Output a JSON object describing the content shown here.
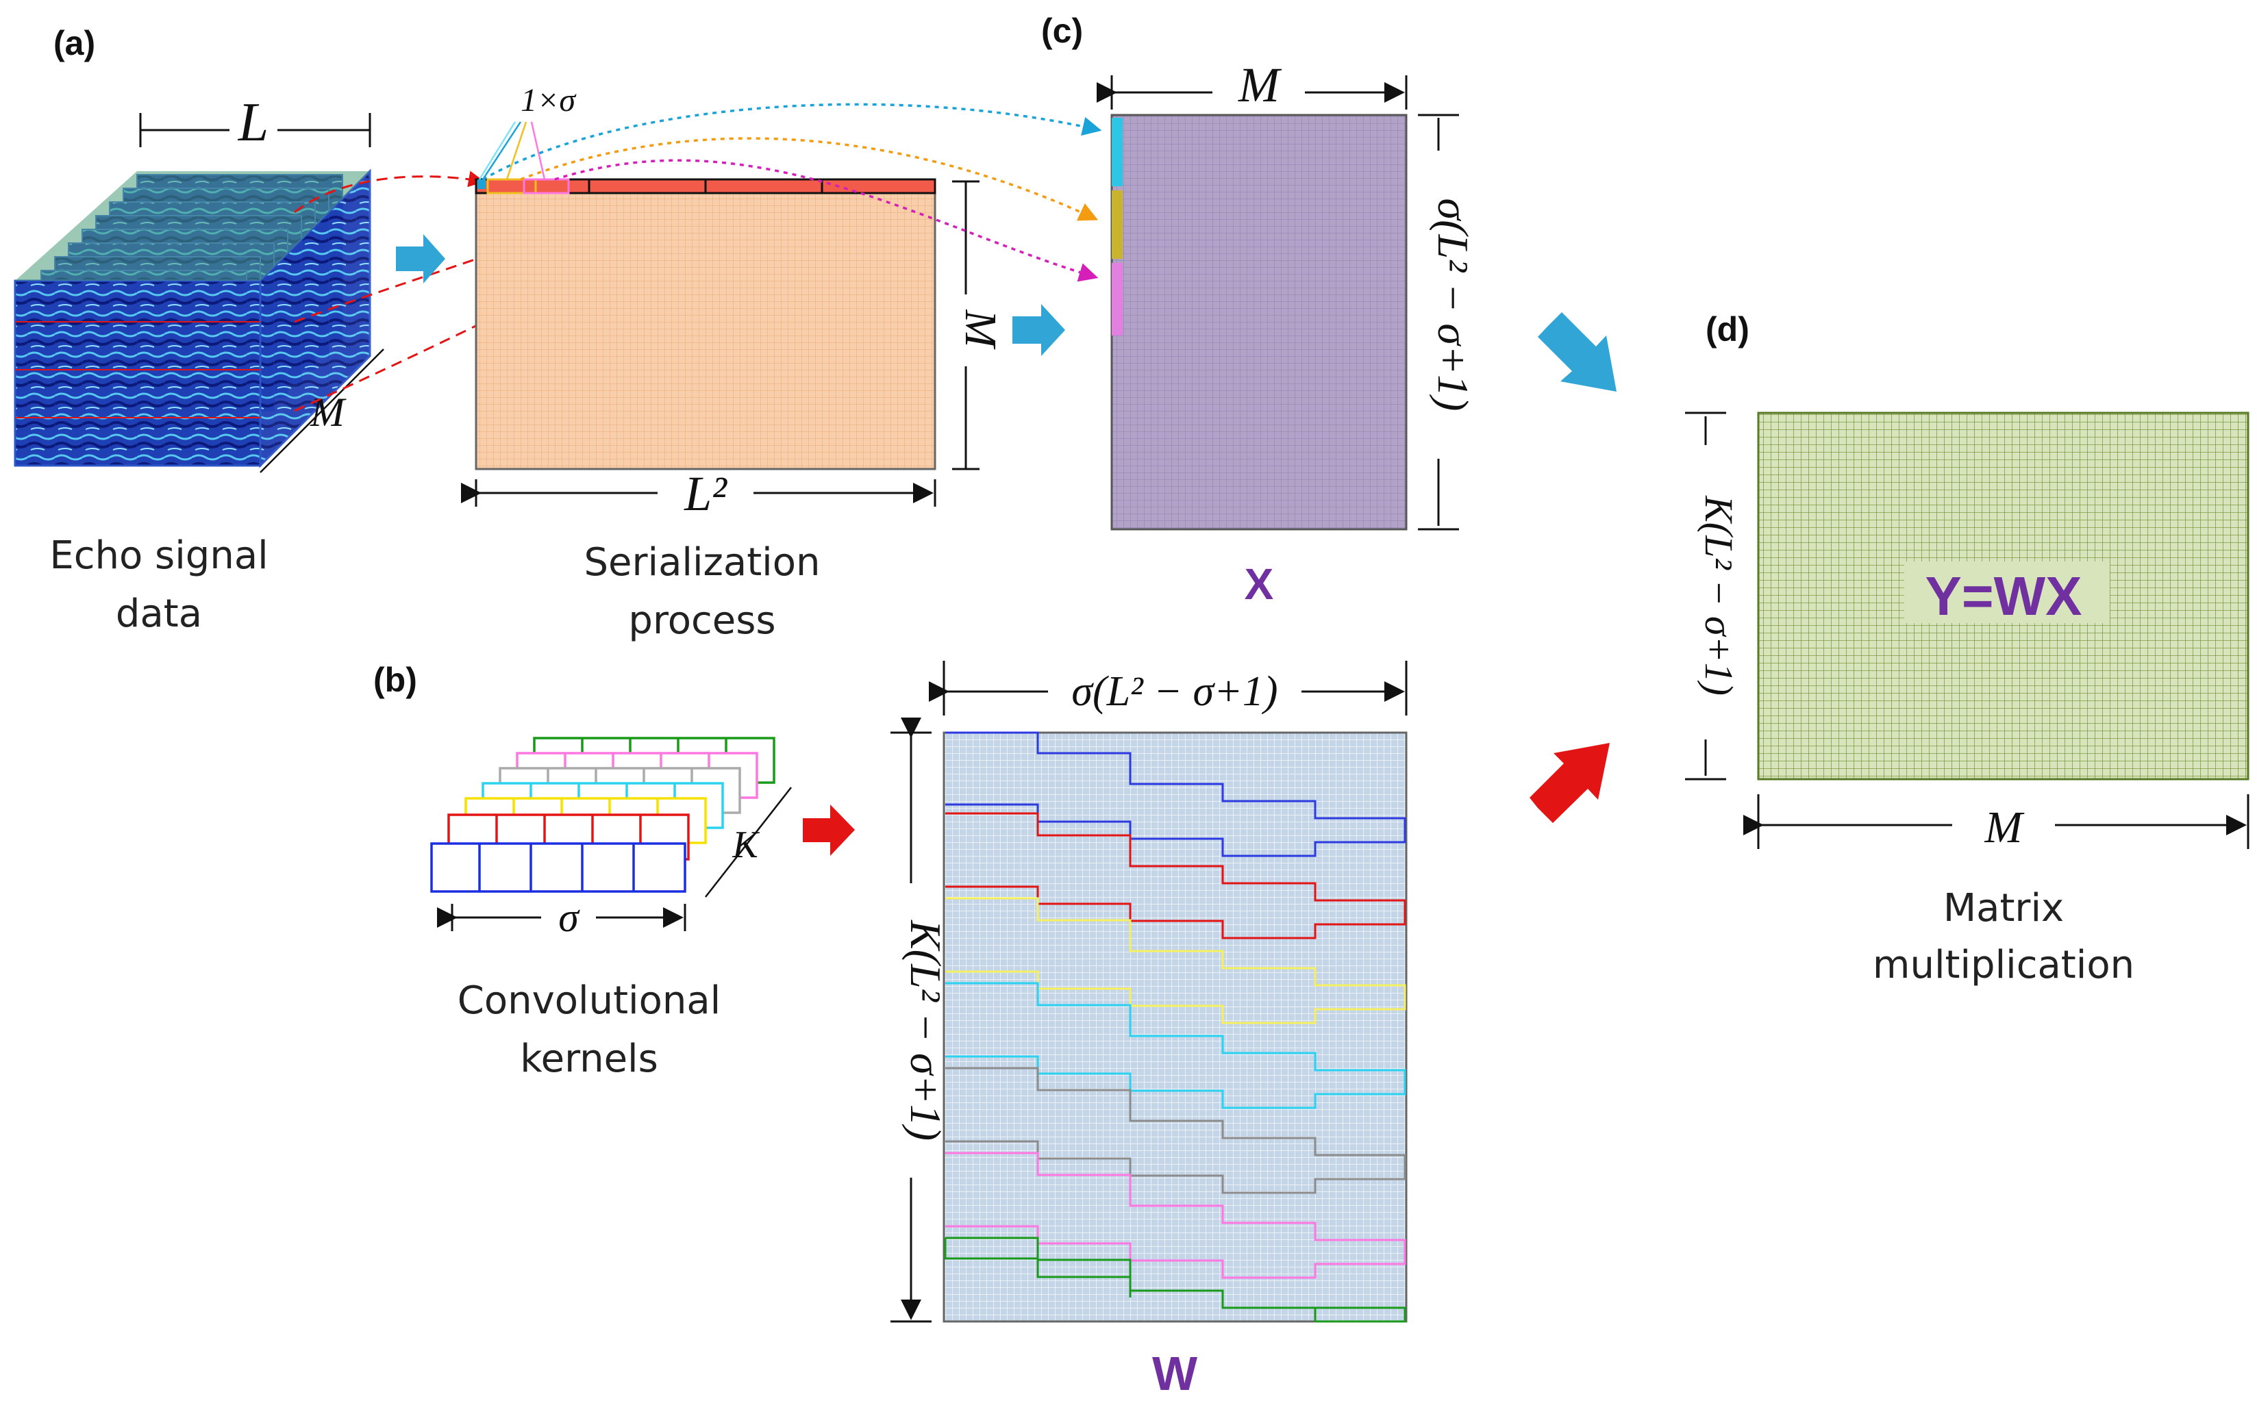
{
  "panels": {
    "a": "(a)",
    "b": "(b)",
    "c": "(c)",
    "d": "(d)"
  },
  "captions": {
    "echo_line1": "Echo signal",
    "echo_line2": "data",
    "serial_line1": "Serialization",
    "serial_line2": "process",
    "kernels_line1": "Convolutional",
    "kernels_line2": "kernels",
    "matmul_line1": "Matrix",
    "matmul_line2": "multiplication"
  },
  "matrices": {
    "x_name": "X",
    "w_name": "W",
    "y_equation": "Y=WX"
  },
  "dims": {
    "cube_L": "L",
    "cube_M": "M",
    "slice_label": "1×σ",
    "serial_M": "M",
    "serial_L2": "L²",
    "x_width": "M",
    "x_height": "σ(L² − σ+1)",
    "kernel_K": "K",
    "kernel_sigma": "σ",
    "w_width": "σ(L² − σ+1)",
    "w_height": "K(L² − σ+1)",
    "y_height": "K(L² − σ+1)",
    "y_width": "M"
  },
  "colors": {
    "serial_fill": "#f8cfaa",
    "x_fill": "#b2a2c7",
    "w_fill": "#c5d5e8",
    "y_fill": "#d7e4bc",
    "title_purple": "#7030a0",
    "arrow_blue": "#31a6d6",
    "arrow_red": "#e31414"
  },
  "icons": [
    "arrow-right-blue",
    "arrow-right-red",
    "arrow-diagonal-blue",
    "arrow-diagonal-red"
  ]
}
